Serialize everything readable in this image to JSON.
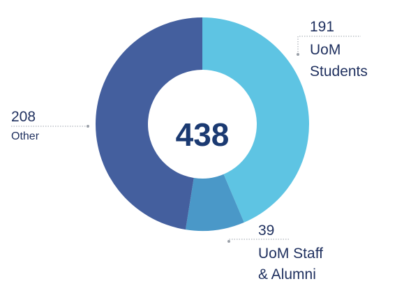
{
  "chart_data": {
    "type": "pie",
    "variant": "donut",
    "center_label": "438",
    "slices": [
      {
        "label_lines": [
          "UoM",
          "Students"
        ],
        "value": 191,
        "value_text": "191",
        "color": "#5ec4e3"
      },
      {
        "label_lines": [
          "UoM Staff",
          "& Alumni"
        ],
        "value": 39,
        "value_text": "39",
        "color": "#4a98c8"
      },
      {
        "label_lines": [
          "Other"
        ],
        "value": 208,
        "value_text": "208",
        "color": "#445f9e"
      }
    ]
  }
}
